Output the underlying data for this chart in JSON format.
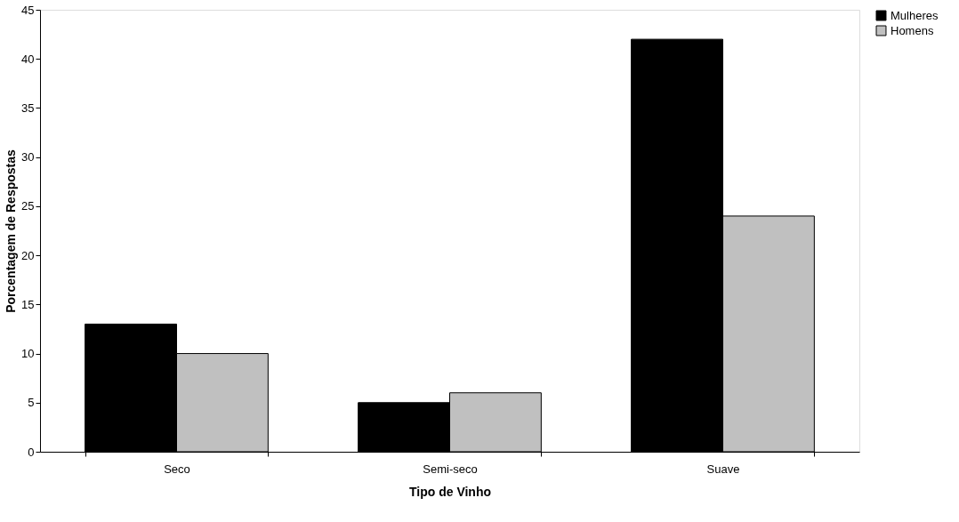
{
  "chart_data": {
    "type": "bar",
    "xlabel": "Tipo de Vinho",
    "ylabel": "Porcentagem de Respostas",
    "categories": [
      "Seco",
      "Semi-seco",
      "Suave"
    ],
    "series": [
      {
        "name": "Mulheres",
        "color": "#000000",
        "values": [
          13,
          5,
          42
        ]
      },
      {
        "name": "Homens",
        "color": "#c0c0c0",
        "values": [
          10,
          6,
          24
        ]
      }
    ],
    "ylim": [
      0,
      45
    ],
    "yticks": [
      0,
      5,
      10,
      15,
      20,
      25,
      30,
      35,
      40,
      45
    ],
    "grid": false,
    "legend": "right"
  }
}
